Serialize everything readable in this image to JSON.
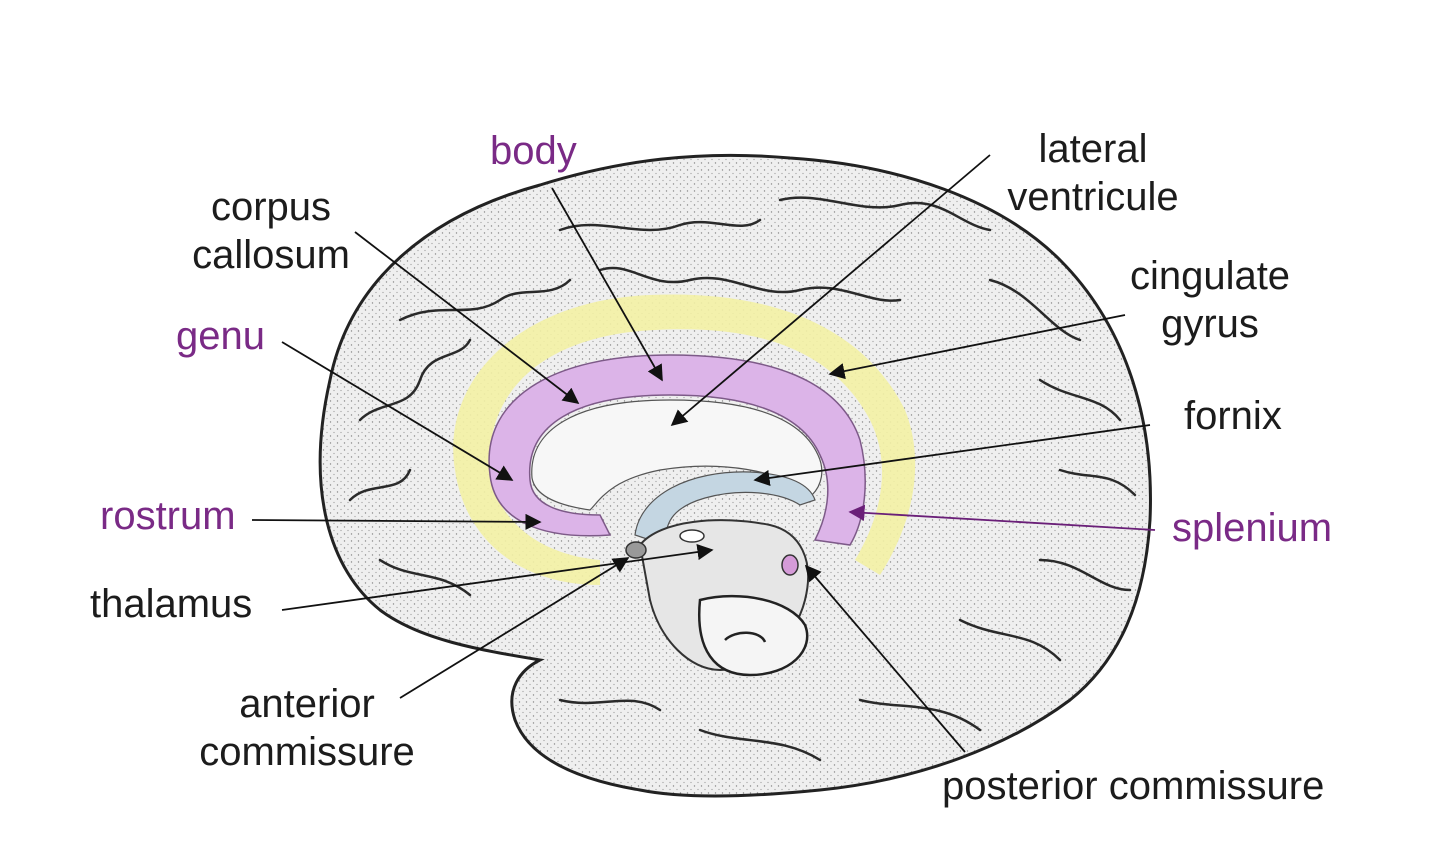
{
  "colors": {
    "black_label": "#1c1c1c",
    "purple_label": "#7a2a86",
    "corpus_callosum_fill": "#dcb4e8",
    "cingulate_fill": "#f3f1a4",
    "fornix_fill": "#c4d6e2",
    "brain_fill": "#ededed"
  },
  "labels": {
    "body": "body",
    "corpus_callosum": [
      "corpus",
      "callosum"
    ],
    "lateral_ventricule": [
      "lateral",
      "ventricule"
    ],
    "cingulate_gyrus": [
      "cingulate",
      "gyrus"
    ],
    "genu": "genu",
    "fornix": "fornix",
    "rostrum": "rostrum",
    "splenium": "splenium",
    "thalamus": "thalamus",
    "anterior_commissure": [
      "anterior",
      "commissure"
    ],
    "posterior_commissure": "posterior commissure"
  }
}
